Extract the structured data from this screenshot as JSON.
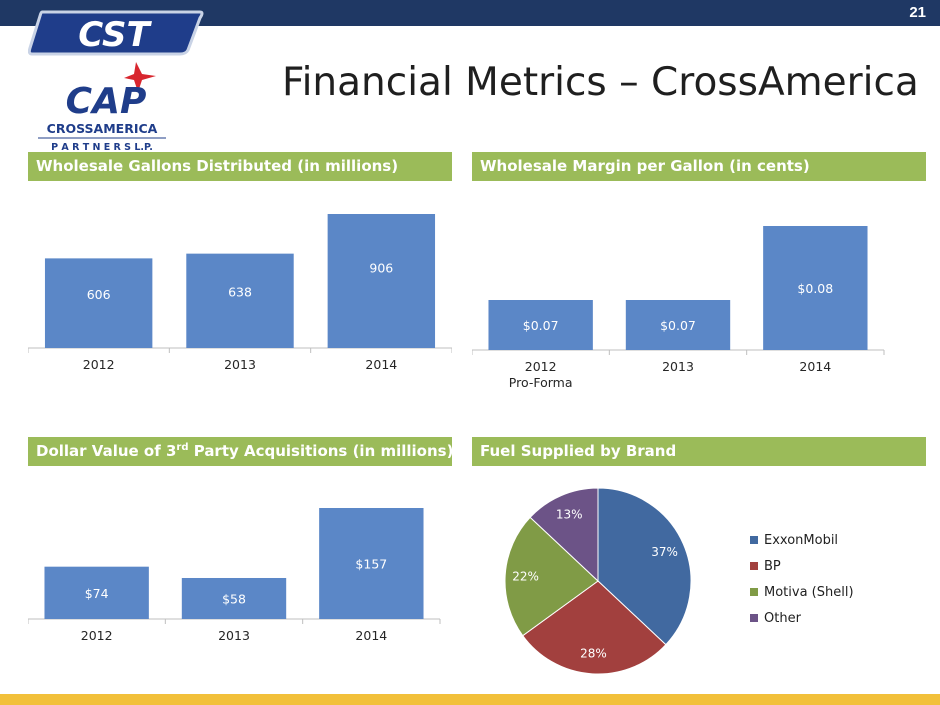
{
  "page_number": "21",
  "title": "Financial Metrics – CrossAmerica",
  "logos": {
    "top_text": "CST",
    "middle_text": "CAP",
    "name_text": "CROSSAMERICA",
    "sub_text": "P A R T N E R S   L.P."
  },
  "colors": {
    "bar": "#5b87c7",
    "header": "#9bbb59",
    "topbar": "#1f3864",
    "bottombar": "#f2c03a",
    "exxon": "#4169a0",
    "bp": "#a2403e",
    "motiva": "#809b46",
    "other": "#6c5387"
  },
  "sections": {
    "gallons_header": "Wholesale Gallons Distributed (in millions)",
    "margin_header": "Wholesale Margin per Gallon (in cents)",
    "acq_header_pre": "Dollar Value of 3",
    "acq_header_sup": "rd",
    "acq_header_post": " Party Acquisitions (in millions)",
    "fuel_header": "Fuel Supplied by Brand"
  },
  "chart_data": [
    {
      "type": "bar",
      "title": "Wholesale Gallons Distributed (in millions)",
      "categories": [
        "2012",
        "2013",
        "2014"
      ],
      "values": [
        606,
        638,
        906
      ],
      "labels": [
        "606",
        "638",
        "906"
      ]
    },
    {
      "type": "bar",
      "title": "Wholesale Margin per Gallon (in cents)",
      "categories": [
        "2012",
        "2013",
        "2014"
      ],
      "category_sublabels": [
        "Pro-Forma",
        "",
        ""
      ],
      "values": [
        0.07,
        0.07,
        0.08
      ],
      "labels": [
        "$0.07",
        "$0.07",
        "$0.08"
      ]
    },
    {
      "type": "bar",
      "title": "Dollar Value of 3rd Party Acquisitions (in millions)",
      "categories": [
        "2012",
        "2013",
        "2014"
      ],
      "values": [
        74,
        58,
        157
      ],
      "labels": [
        "$74",
        "$58",
        "$157"
      ]
    },
    {
      "type": "pie",
      "title": "Fuel Supplied by Brand",
      "categories": [
        "ExxonMobil",
        "BP",
        "Motiva (Shell)",
        "Other"
      ],
      "values": [
        37,
        28,
        22,
        13
      ],
      "labels": [
        "37%",
        "28%",
        "22%",
        "13%"
      ],
      "legend": "right"
    }
  ]
}
